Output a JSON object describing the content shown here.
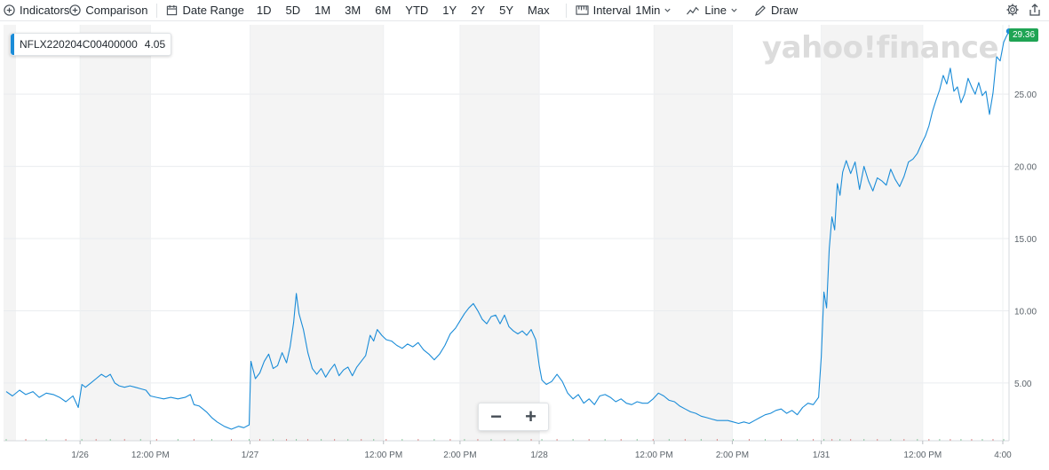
{
  "toolbar": {
    "indicators_label": "Indicators",
    "comparison_label": "Comparison",
    "date_range_label": "Date Range",
    "ranges": [
      "1D",
      "5D",
      "1M",
      "3M",
      "6M",
      "YTD",
      "1Y",
      "2Y",
      "5Y",
      "Max"
    ],
    "interval_label": "Interval",
    "interval_value": "1Min",
    "line_label": "Line",
    "draw_label": "Draw",
    "icons": {
      "indicators": "plus-circle-icon",
      "comparison": "plus-circle-icon",
      "date_range": "calendar-icon",
      "interval": "ruler-icon",
      "line": "line-chart-icon",
      "draw": "pencil-icon",
      "settings": "gear-icon",
      "share": "share-icon"
    }
  },
  "legend": {
    "symbol": "NFLX220204C00400000",
    "value": "4.05",
    "color": "#1a8cd8"
  },
  "watermark": "yahoo!finance",
  "last_price": {
    "value": "29.36",
    "color": "#1fa454"
  },
  "zoom": {
    "minus": "−",
    "plus": "+"
  },
  "chart_data": {
    "type": "line",
    "title": "",
    "xlabel": "",
    "ylabel": "",
    "ylim": [
      1,
      29.8
    ],
    "yticks": [
      5,
      10,
      15,
      20,
      25
    ],
    "ytick_labels": [
      "5.00",
      "10.00",
      "15.00",
      "20.00",
      "25.00"
    ],
    "xlim": [
      0,
      1130
    ],
    "xticks": [
      {
        "t": 86,
        "label": "1/26"
      },
      {
        "t": 165,
        "label": "12:00 PM"
      },
      {
        "t": 277,
        "label": "1/27"
      },
      {
        "t": 427,
        "label": "12:00 PM"
      },
      {
        "t": 513,
        "label": "2:00 PM"
      },
      {
        "t": 602,
        "label": "1/28"
      },
      {
        "t": 731,
        "label": "12:00 PM"
      },
      {
        "t": 819,
        "label": "2:00 PM"
      },
      {
        "t": 919,
        "label": "1/31"
      },
      {
        "t": 1033,
        "label": "12:00 PM"
      },
      {
        "t": 1123,
        "label": "4:00"
      }
    ],
    "shaded_bands": [
      [
        0,
        14
      ],
      [
        86,
        165
      ],
      [
        277,
        427
      ],
      [
        513,
        602
      ],
      [
        731,
        819
      ],
      [
        919,
        1033
      ]
    ],
    "series": [
      {
        "color": "#1a8cd8",
        "points": [
          [
            3,
            4.4
          ],
          [
            10,
            4.1
          ],
          [
            18,
            4.5
          ],
          [
            25,
            4.2
          ],
          [
            33,
            4.4
          ],
          [
            40,
            4.0
          ],
          [
            48,
            4.3
          ],
          [
            56,
            4.2
          ],
          [
            63,
            4.0
          ],
          [
            70,
            3.7
          ],
          [
            78,
            4.1
          ],
          [
            84,
            3.3
          ],
          [
            88,
            4.9
          ],
          [
            92,
            4.7
          ],
          [
            98,
            5.0
          ],
          [
            104,
            5.3
          ],
          [
            110,
            5.6
          ],
          [
            115,
            5.4
          ],
          [
            120,
            5.6
          ],
          [
            125,
            5.0
          ],
          [
            130,
            4.8
          ],
          [
            136,
            4.7
          ],
          [
            142,
            4.8
          ],
          [
            148,
            4.7
          ],
          [
            154,
            4.6
          ],
          [
            160,
            4.5
          ],
          [
            165,
            4.1
          ],
          [
            172,
            4.0
          ],
          [
            180,
            3.9
          ],
          [
            188,
            4.0
          ],
          [
            196,
            3.9
          ],
          [
            204,
            4.0
          ],
          [
            210,
            4.2
          ],
          [
            214,
            3.5
          ],
          [
            220,
            3.4
          ],
          [
            228,
            3.0
          ],
          [
            234,
            2.6
          ],
          [
            240,
            2.3
          ],
          [
            248,
            2.0
          ],
          [
            256,
            1.8
          ],
          [
            264,
            2.0
          ],
          [
            270,
            1.9
          ],
          [
            276,
            2.1
          ],
          [
            278,
            6.5
          ],
          [
            283,
            5.3
          ],
          [
            288,
            5.7
          ],
          [
            293,
            6.5
          ],
          [
            298,
            7.0
          ],
          [
            303,
            6.0
          ],
          [
            308,
            6.2
          ],
          [
            313,
            7.1
          ],
          [
            318,
            6.4
          ],
          [
            322,
            7.5
          ],
          [
            326,
            9.2
          ],
          [
            329,
            11.2
          ],
          [
            332,
            9.8
          ],
          [
            337,
            8.7
          ],
          [
            342,
            7.1
          ],
          [
            347,
            6.0
          ],
          [
            352,
            5.6
          ],
          [
            357,
            6.0
          ],
          [
            362,
            5.4
          ],
          [
            367,
            5.9
          ],
          [
            372,
            6.3
          ],
          [
            377,
            5.5
          ],
          [
            382,
            5.9
          ],
          [
            387,
            6.1
          ],
          [
            392,
            5.5
          ],
          [
            397,
            6.1
          ],
          [
            402,
            6.5
          ],
          [
            407,
            6.9
          ],
          [
            412,
            8.3
          ],
          [
            416,
            7.9
          ],
          [
            420,
            8.7
          ],
          [
            425,
            8.3
          ],
          [
            430,
            8.0
          ],
          [
            436,
            7.9
          ],
          [
            442,
            7.6
          ],
          [
            448,
            7.4
          ],
          [
            454,
            7.7
          ],
          [
            460,
            7.5
          ],
          [
            466,
            7.8
          ],
          [
            472,
            7.3
          ],
          [
            478,
            7.0
          ],
          [
            484,
            6.6
          ],
          [
            490,
            7.0
          ],
          [
            496,
            7.6
          ],
          [
            502,
            8.4
          ],
          [
            508,
            8.8
          ],
          [
            513,
            9.3
          ],
          [
            518,
            9.8
          ],
          [
            523,
            10.2
          ],
          [
            528,
            10.5
          ],
          [
            533,
            10.0
          ],
          [
            538,
            9.4
          ],
          [
            543,
            9.1
          ],
          [
            548,
            9.6
          ],
          [
            553,
            9.7
          ],
          [
            558,
            9.1
          ],
          [
            563,
            9.7
          ],
          [
            568,
            8.9
          ],
          [
            573,
            8.6
          ],
          [
            578,
            8.4
          ],
          [
            583,
            8.6
          ],
          [
            588,
            8.3
          ],
          [
            593,
            8.7
          ],
          [
            598,
            8.0
          ],
          [
            602,
            6.2
          ],
          [
            605,
            5.2
          ],
          [
            610,
            4.9
          ],
          [
            616,
            5.1
          ],
          [
            622,
            5.6
          ],
          [
            628,
            5.1
          ],
          [
            634,
            4.3
          ],
          [
            640,
            3.9
          ],
          [
            646,
            4.2
          ],
          [
            652,
            3.6
          ],
          [
            658,
            3.9
          ],
          [
            664,
            3.5
          ],
          [
            670,
            4.1
          ],
          [
            676,
            4.2
          ],
          [
            682,
            4.0
          ],
          [
            688,
            3.7
          ],
          [
            694,
            3.9
          ],
          [
            700,
            3.6
          ],
          [
            706,
            3.5
          ],
          [
            712,
            3.7
          ],
          [
            718,
            3.6
          ],
          [
            724,
            3.6
          ],
          [
            730,
            3.9
          ],
          [
            736,
            4.3
          ],
          [
            742,
            4.1
          ],
          [
            748,
            3.8
          ],
          [
            754,
            3.7
          ],
          [
            760,
            3.4
          ],
          [
            766,
            3.2
          ],
          [
            772,
            3.0
          ],
          [
            778,
            2.9
          ],
          [
            784,
            2.7
          ],
          [
            790,
            2.6
          ],
          [
            796,
            2.5
          ],
          [
            802,
            2.4
          ],
          [
            808,
            2.4
          ],
          [
            814,
            2.4
          ],
          [
            820,
            2.3
          ],
          [
            826,
            2.2
          ],
          [
            832,
            2.3
          ],
          [
            838,
            2.2
          ],
          [
            844,
            2.4
          ],
          [
            850,
            2.6
          ],
          [
            856,
            2.8
          ],
          [
            862,
            2.9
          ],
          [
            868,
            3.1
          ],
          [
            874,
            3.2
          ],
          [
            880,
            2.9
          ],
          [
            886,
            3.1
          ],
          [
            892,
            2.8
          ],
          [
            898,
            3.3
          ],
          [
            904,
            3.6
          ],
          [
            910,
            3.5
          ],
          [
            916,
            4.0
          ],
          [
            919,
            6.8
          ],
          [
            922,
            11.3
          ],
          [
            925,
            10.2
          ],
          [
            928,
            14.3
          ],
          [
            931,
            16.5
          ],
          [
            934,
            15.6
          ],
          [
            937,
            18.8
          ],
          [
            940,
            18.0
          ],
          [
            943,
            19.6
          ],
          [
            947,
            20.4
          ],
          [
            952,
            19.5
          ],
          [
            957,
            20.3
          ],
          [
            962,
            18.4
          ],
          [
            967,
            20.0
          ],
          [
            972,
            19.0
          ],
          [
            977,
            18.3
          ],
          [
            982,
            19.2
          ],
          [
            987,
            19.0
          ],
          [
            992,
            18.7
          ],
          [
            997,
            19.8
          ],
          [
            1002,
            19.1
          ],
          [
            1007,
            18.6
          ],
          [
            1012,
            19.3
          ],
          [
            1017,
            20.3
          ],
          [
            1022,
            20.5
          ],
          [
            1027,
            20.9
          ],
          [
            1032,
            21.6
          ],
          [
            1036,
            22.1
          ],
          [
            1040,
            22.8
          ],
          [
            1044,
            23.8
          ],
          [
            1048,
            24.6
          ],
          [
            1052,
            25.3
          ],
          [
            1056,
            26.3
          ],
          [
            1060,
            25.7
          ],
          [
            1064,
            26.8
          ],
          [
            1068,
            25.2
          ],
          [
            1072,
            25.5
          ],
          [
            1076,
            24.4
          ],
          [
            1080,
            25.0
          ],
          [
            1084,
            26.1
          ],
          [
            1088,
            25.5
          ],
          [
            1092,
            25.0
          ],
          [
            1096,
            25.8
          ],
          [
            1100,
            24.9
          ],
          [
            1104,
            25.2
          ],
          [
            1108,
            23.6
          ],
          [
            1112,
            25.1
          ],
          [
            1116,
            27.6
          ],
          [
            1120,
            27.3
          ],
          [
            1124,
            28.6
          ],
          [
            1127,
            29.0
          ],
          [
            1130,
            29.36
          ]
        ]
      }
    ],
    "grid": true,
    "legend_position": "top-left"
  }
}
